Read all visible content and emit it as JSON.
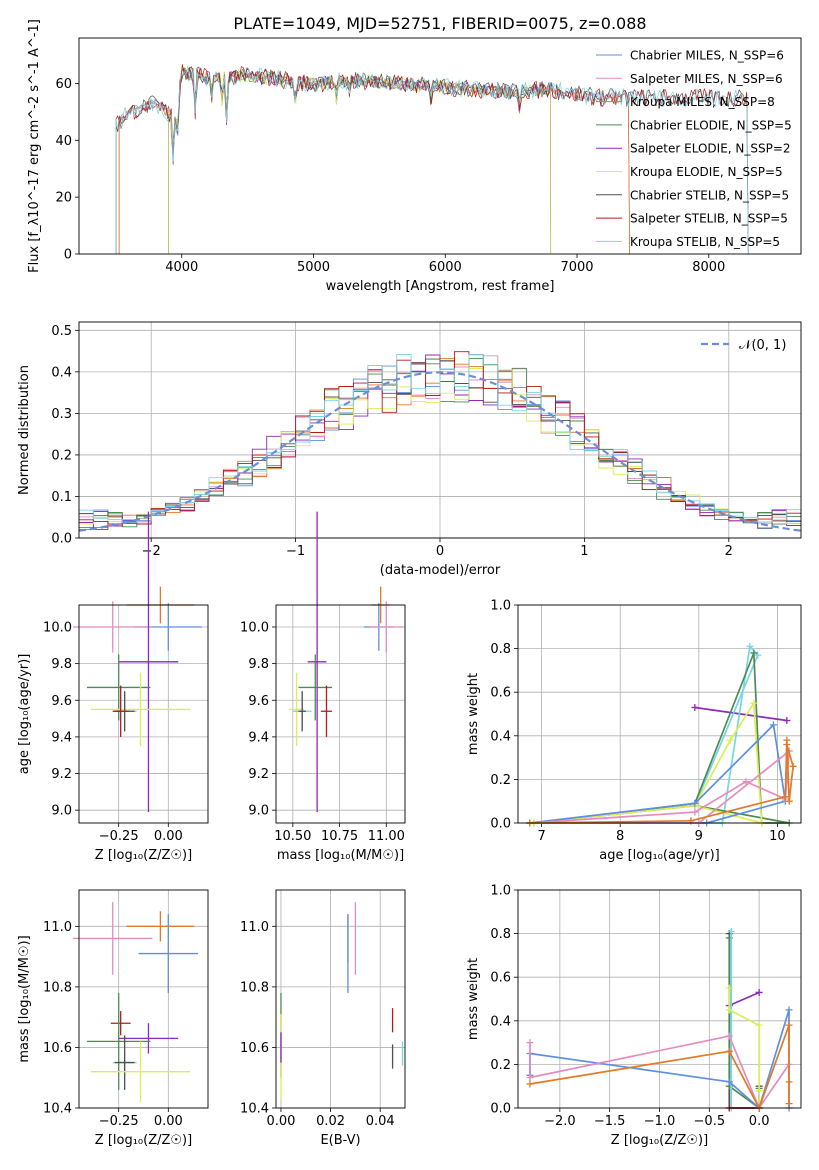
{
  "title": "PLATE=1049, MJD=52751, FIBERID=0075, z=0.088",
  "colors": {
    "chabrier_miles": "#5f8fe0",
    "salpeter_miles": "#e58cbe",
    "kroupa_miles": "#e07a28",
    "chabrier_elodie": "#4f8a52",
    "salpeter_elodie": "#8d2ab8",
    "kroupa_elodie": "#dced56",
    "chabrier_stelib": "#505050",
    "salpeter_stelib": "#b51a1a",
    "kroupa_stelib": "#76d6e6"
  },
  "chart_data": [
    {
      "id": "spectrum",
      "type": "line",
      "title": "PLATE=1049, MJD=52751, FIBERID=0075, z=0.088",
      "xlabel": "wavelength [Angstrom, rest frame]",
      "ylabel": "Flux [f_λ10^-17 erg cm^-2 s^-1 A^-1]",
      "xlim": [
        3220,
        8700
      ],
      "ylim": [
        0,
        76
      ],
      "xticks": [
        4000,
        5000,
        6000,
        7000,
        8000
      ],
      "yticks": [
        0,
        20,
        40,
        60
      ],
      "grid": false,
      "legend_position": "top-right",
      "series": [
        {
          "name": "Chabrier MILES, N_SSP=6",
          "key": "chabrier_miles"
        },
        {
          "name": "Salpeter MILES, N_SSP=6",
          "key": "salpeter_miles"
        },
        {
          "name": "Kroupa MILES, N_SSP=8",
          "key": "kroupa_miles"
        },
        {
          "name": "Chabrier ELODIE, N_SSP=5",
          "key": "chabrier_elodie"
        },
        {
          "name": "Salpeter ELODIE, N_SSP=2",
          "key": "salpeter_elodie"
        },
        {
          "name": "Kroupa ELODIE, N_SSP=5",
          "key": "kroupa_elodie"
        },
        {
          "name": "Chabrier STELIB, N_SSP=5",
          "key": "chabrier_stelib"
        },
        {
          "name": "Salpeter STELIB, N_SSP=5",
          "key": "salpeter_stelib"
        },
        {
          "name": "Kroupa STELIB, N_SSP=5",
          "key": "kroupa_stelib"
        }
      ],
      "continuum": [
        [
          3500,
          45
        ],
        [
          3600,
          50
        ],
        [
          3800,
          53
        ],
        [
          3950,
          48
        ],
        [
          4000,
          64
        ],
        [
          4200,
          62
        ],
        [
          4500,
          63
        ],
        [
          4800,
          61
        ],
        [
          5000,
          60
        ],
        [
          5300,
          61
        ],
        [
          5600,
          60
        ],
        [
          5900,
          59
        ],
        [
          6200,
          58
        ],
        [
          6500,
          57
        ],
        [
          6800,
          58
        ],
        [
          7000,
          56
        ],
        [
          7200,
          55
        ],
        [
          7500,
          55
        ],
        [
          7800,
          55
        ],
        [
          8000,
          55
        ],
        [
          8300,
          55
        ]
      ],
      "model_ranges": {
        "chabrier_miles": [
          3525,
          7400
        ],
        "salpeter_miles": [
          3525,
          7400
        ],
        "kroupa_miles": [
          3525,
          7400
        ],
        "chabrier_elodie": [
          3900,
          6800
        ],
        "salpeter_elodie": [
          3900,
          6800
        ],
        "kroupa_elodie": [
          3900,
          6800
        ],
        "chabrier_stelib": [
          3500,
          8300
        ],
        "salpeter_stelib": [
          3500,
          8300
        ],
        "kroupa_stelib": [
          3500,
          8300
        ]
      }
    },
    {
      "id": "residuals",
      "type": "line",
      "xlabel": "(data-model)/error",
      "ylabel": "Normed distribution",
      "xlim": [
        -2.5,
        2.5
      ],
      "ylim": [
        0,
        0.52
      ],
      "xticks": [
        -2,
        -1,
        0,
        1,
        2
      ],
      "yticks": [
        0.0,
        0.1,
        0.2,
        0.3,
        0.4,
        0.5
      ],
      "grid": true,
      "legend_position": "top-right",
      "series": [
        {
          "name": "N(0,1)",
          "label": "𝒩(0, 1)",
          "color": "#6a8fd6",
          "style": "dashed",
          "mean": 0,
          "sigma": 1
        }
      ]
    },
    {
      "id": "age_vs_Z",
      "type": "scatter",
      "xlabel": "Z [log₁₀(Z/Z☉)]",
      "ylabel": "age  [log₁₀(age/yr)]",
      "xlim": [
        -0.45,
        0.2
      ],
      "ylim": [
        8.93,
        10.12
      ],
      "xticks": [
        -0.25,
        0.0
      ],
      "yticks": [
        9.0,
        9.2,
        9.4,
        9.6,
        9.8,
        10.0
      ],
      "grid": true,
      "points": [
        {
          "key": "kroupa_miles",
          "x": -0.04,
          "y": 10.12,
          "xerr": 0.17,
          "yerr": 0.1
        },
        {
          "key": "chabrier_miles",
          "x": 0.0,
          "y": 10.0,
          "xerr": 0.17,
          "yerr": 0.13
        },
        {
          "key": "salpeter_miles",
          "x": -0.28,
          "y": 10.0,
          "xerr": 0.2,
          "yerr": 0.14
        },
        {
          "key": "salpeter_elodie",
          "x": -0.1,
          "y": 9.81,
          "xerr": 0.15,
          "yerr": 0.82
        },
        {
          "key": "chabrier_elodie",
          "x": -0.25,
          "y": 9.67,
          "xerr": 0.16,
          "yerr": 0.18
        },
        {
          "key": "kroupa_elodie",
          "x": -0.14,
          "y": 9.55,
          "xerr": 0.25,
          "yerr": 0.2
        },
        {
          "key": "kroupa_stelib",
          "x": -0.22,
          "y": 9.54,
          "xerr": 0.06,
          "yerr": 0.1
        },
        {
          "key": "chabrier_stelib",
          "x": -0.22,
          "y": 9.54,
          "xerr": 0.05,
          "yerr": 0.11
        },
        {
          "key": "salpeter_stelib",
          "x": -0.24,
          "y": 9.54,
          "xerr": 0.04,
          "yerr": 0.14
        }
      ]
    },
    {
      "id": "age_vs_mass",
      "type": "scatter",
      "xlabel": "mass [log₁₀(M/M☉)]",
      "ylabel": "",
      "xlim": [
        10.41,
        11.1
      ],
      "ylim": [
        8.93,
        10.12
      ],
      "xticks": [
        10.5,
        10.75,
        11.0
      ],
      "yticks": [
        9.0,
        9.2,
        9.4,
        9.6,
        9.8,
        10.0
      ],
      "grid": true,
      "points": [
        {
          "key": "kroupa_miles",
          "x": 10.97,
          "y": 10.12,
          "xerr": 0.05,
          "yerr": 0.1
        },
        {
          "key": "chabrier_miles",
          "x": 10.96,
          "y": 10.0,
          "xerr": 0.08,
          "yerr": 0.13
        },
        {
          "key": "salpeter_miles",
          "x": 11.0,
          "y": 10.0,
          "xerr": 0.09,
          "yerr": 0.14
        },
        {
          "key": "salpeter_elodie",
          "x": 10.63,
          "y": 9.81,
          "xerr": 0.05,
          "yerr": 0.82
        },
        {
          "key": "chabrier_elodie",
          "x": 10.62,
          "y": 9.67,
          "xerr": 0.09,
          "yerr": 0.18
        },
        {
          "key": "kroupa_elodie",
          "x": 10.52,
          "y": 9.55,
          "xerr": 0.04,
          "yerr": 0.2
        },
        {
          "key": "kroupa_stelib",
          "x": 10.55,
          "y": 9.54,
          "xerr": 0.05,
          "yerr": 0.1
        },
        {
          "key": "chabrier_stelib",
          "x": 10.55,
          "y": 9.54,
          "xerr": 0.02,
          "yerr": 0.11
        },
        {
          "key": "salpeter_stelib",
          "x": 10.68,
          "y": 9.54,
          "xerr": 0.03,
          "yerr": 0.14
        }
      ]
    },
    {
      "id": "weight_vs_age",
      "type": "line",
      "xlabel": "age  [log₁₀(age/yr)]",
      "ylabel": "mass weight",
      "xlim": [
        6.7,
        10.3
      ],
      "ylim": [
        0,
        1.0
      ],
      "xticks": [
        7,
        8,
        9,
        10
      ],
      "yticks": [
        0.0,
        0.2,
        0.4,
        0.6,
        0.8,
        1.0
      ],
      "grid": true,
      "series": [
        {
          "key": "salpeter_elodie",
          "x": [
            8.95,
            10.12
          ],
          "y": [
            0.53,
            0.47
          ]
        },
        {
          "key": "kroupa_stelib",
          "x": [
            6.85,
            9.3,
            9.65,
            9.75,
            8.95,
            6.85
          ],
          "y": [
            0.0,
            0.0,
            0.81,
            0.77,
            0.08,
            0.0
          ]
        },
        {
          "key": "chabrier_elodie",
          "x": [
            6.9,
            8.95,
            9.7,
            9.8,
            10.15,
            8.95,
            6.9
          ],
          "y": [
            0.0,
            0.09,
            0.78,
            0.0,
            0.0,
            0.08,
            0.0
          ]
        },
        {
          "key": "kroupa_elodie",
          "x": [
            6.9,
            8.95,
            9.4,
            9.7,
            9.8,
            8.95
          ],
          "y": [
            0.0,
            0.08,
            0.38,
            0.55,
            0.0,
            0.08
          ]
        },
        {
          "key": "chabrier_miles",
          "x": [
            6.85,
            8.95,
            9.95,
            10.1,
            9.1,
            6.85
          ],
          "y": [
            0.0,
            0.09,
            0.45,
            0.1,
            0.0,
            0.0
          ]
        },
        {
          "key": "salpeter_miles",
          "x": [
            6.85,
            8.95,
            9.6,
            10.1,
            10.15,
            9.0,
            6.85
          ],
          "y": [
            0.0,
            0.05,
            0.19,
            0.11,
            0.33,
            0.0,
            0.0
          ]
        },
        {
          "key": "kroupa_miles",
          "x": [
            6.85,
            8.9,
            10.1,
            10.12,
            10.15,
            10.2,
            10.12,
            10.1,
            8.9
          ],
          "y": [
            0.0,
            0.01,
            0.12,
            0.38,
            0.1,
            0.26,
            0.36,
            0.12,
            0.01
          ]
        }
      ]
    },
    {
      "id": "mass_vs_Z",
      "type": "scatter",
      "xlabel": "Z [log₁₀(Z/Z☉)]",
      "ylabel": "mass [log₁₀(M/M☉)]",
      "xlim": [
        -0.45,
        0.2
      ],
      "ylim": [
        10.4,
        11.12
      ],
      "xticks": [
        -0.25,
        0.0
      ],
      "yticks": [
        10.4,
        10.6,
        10.8,
        11.0
      ],
      "grid": true,
      "points": [
        {
          "key": "salpeter_miles",
          "x": -0.28,
          "y": 10.96,
          "xerr": 0.2,
          "yerr": 0.12
        },
        {
          "key": "kroupa_miles",
          "x": -0.04,
          "y": 11.0,
          "xerr": 0.17,
          "yerr": 0.05
        },
        {
          "key": "chabrier_miles",
          "x": 0.0,
          "y": 10.91,
          "xerr": 0.15,
          "yerr": 0.13
        },
        {
          "key": "salpeter_stelib",
          "x": -0.24,
          "y": 10.68,
          "xerr": 0.05,
          "yerr": 0.04
        },
        {
          "key": "salpeter_elodie",
          "x": -0.1,
          "y": 10.63,
          "xerr": 0.15,
          "yerr": 0.05
        },
        {
          "key": "chabrier_elodie",
          "x": -0.25,
          "y": 10.62,
          "xerr": 0.16,
          "yerr": 0.16
        },
        {
          "key": "kroupa_stelib",
          "x": -0.22,
          "y": 10.55,
          "xerr": 0.06,
          "yerr": 0.04
        },
        {
          "key": "chabrier_stelib",
          "x": -0.22,
          "y": 10.55,
          "xerr": 0.05,
          "yerr": 0.09
        },
        {
          "key": "kroupa_elodie",
          "x": -0.14,
          "y": 10.52,
          "xerr": 0.25,
          "yerr": 0.1
        }
      ]
    },
    {
      "id": "mass_vs_ebv",
      "type": "scatter",
      "xlabel": "E(B-V)",
      "ylabel": "",
      "xlim": [
        -0.002,
        0.05
      ],
      "ylim": [
        10.4,
        11.12
      ],
      "xticks": [
        0.0,
        0.02,
        0.04
      ],
      "yticks": [
        10.4,
        10.6,
        10.8,
        11.0
      ],
      "grid": true,
      "points": [
        {
          "key": "salpeter_miles",
          "x": 0.03,
          "y": 10.96,
          "xerr": 0.0,
          "yerr": 0.12
        },
        {
          "key": "kroupa_miles",
          "x": 0.027,
          "y": 10.96,
          "xerr": 0.0,
          "yerr": 0.08
        },
        {
          "key": "chabrier_miles",
          "x": 0.027,
          "y": 10.91,
          "xerr": 0.0,
          "yerr": 0.13
        },
        {
          "key": "salpeter_stelib",
          "x": 0.045,
          "y": 10.69,
          "xerr": 0.0,
          "yerr": 0.04
        },
        {
          "key": "chabrier_elodie",
          "x": 0.0,
          "y": 10.64,
          "xerr": 0.0,
          "yerr": 0.14
        },
        {
          "key": "kroupa_elodie",
          "x": 0.0,
          "y": 10.57,
          "xerr": 0.0,
          "yerr": 0.14
        },
        {
          "key": "salpeter_elodie",
          "x": 0.0,
          "y": 10.6,
          "xerr": 0.0,
          "yerr": 0.05
        },
        {
          "key": "chabrier_stelib",
          "x": 0.045,
          "y": 10.57,
          "xerr": 0.0,
          "yerr": 0.04
        },
        {
          "key": "kroupa_stelib",
          "x": 0.049,
          "y": 10.58,
          "xerr": 0.0,
          "yerr": 0.04
        }
      ]
    },
    {
      "id": "weight_vs_Z",
      "type": "line",
      "xlabel": "Z [log₁₀(Z/Z☉)]",
      "ylabel": "mass weight",
      "xlim": [
        -2.42,
        0.42
      ],
      "ylim": [
        0,
        1.0
      ],
      "xticks": [
        -2.0,
        -1.5,
        -1.0,
        -0.5,
        0.0
      ],
      "yticks": [
        0.0,
        0.2,
        0.4,
        0.6,
        0.8,
        1.0
      ],
      "grid": true,
      "series": [
        {
          "key": "salpeter_elodie",
          "x": [
            -0.3,
            0.0
          ],
          "y": [
            0.47,
            0.53
          ]
        },
        {
          "key": "chabrier_stelib",
          "x": [
            -0.3,
            -0.3,
            0.0,
            0.0
          ],
          "y": [
            0.8,
            0.0,
            0.0,
            0.1
          ]
        },
        {
          "key": "chabrier_elodie",
          "x": [
            -0.3,
            -0.3,
            0.0,
            0.0
          ],
          "y": [
            0.78,
            0.1,
            0.0,
            0.09
          ]
        },
        {
          "key": "kroupa_stelib",
          "x": [
            -0.28,
            -0.28,
            0.0,
            0.0
          ],
          "y": [
            0.81,
            0.0,
            0.0,
            0.08
          ]
        },
        {
          "key": "kroupa_elodie",
          "x": [
            -0.3,
            -0.3,
            0.0,
            0.0,
            0.0
          ],
          "y": [
            0.55,
            0.45,
            0.38,
            0.0,
            0.08
          ]
        },
        {
          "key": "salpeter_stelib",
          "x": [
            -0.3,
            0.0
          ],
          "y": [
            0.0,
            0.0
          ]
        },
        {
          "key": "chabrier_miles",
          "x": [
            -2.3,
            -2.3,
            -0.3,
            0.0,
            0.3,
            0.3
          ],
          "y": [
            0.15,
            0.25,
            0.12,
            0.0,
            0.45,
            0.0
          ]
        },
        {
          "key": "salpeter_miles",
          "x": [
            -2.3,
            -2.3,
            -0.3,
            0.0,
            0.3
          ],
          "y": [
            0.3,
            0.14,
            0.33,
            0.0,
            0.2
          ]
        },
        {
          "key": "kroupa_miles",
          "x": [
            -2.3,
            -0.3,
            0.0,
            0.3,
            0.3,
            0.3
          ],
          "y": [
            0.11,
            0.26,
            0.0,
            0.38,
            0.02,
            0.12
          ]
        }
      ]
    }
  ]
}
